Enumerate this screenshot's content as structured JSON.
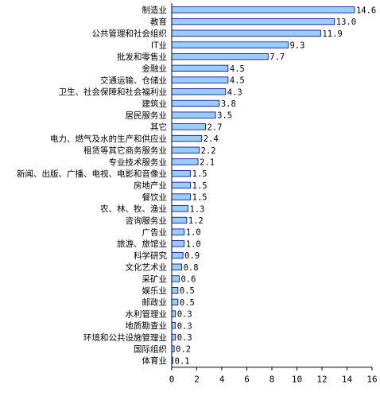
{
  "chart_data": {
    "type": "bar",
    "orientation": "horizontal",
    "categories": [
      "制造业",
      "教育",
      "公共管理和社会组织",
      "IT业",
      "批发和零售业",
      "金融业",
      "交通运输、仓储业",
      "卫生、社会保障和社会福利业",
      "建筑业",
      "居民服务业",
      "其它",
      "电力、燃气及水的生产和供应业",
      "租赁等其它商务服务业",
      "专业技术服务业",
      "新闻、出版、广播、电视、电影和音像业",
      "房地产业",
      "餐饮业",
      "农、林、牧、渔业",
      "咨询服务业",
      "广告业",
      "旅游、旅馆业",
      "科学研究",
      "文化艺术业",
      "采矿业",
      "娱乐业",
      "邮政业",
      "水利管理业",
      "地质勘查业",
      "环境和公共设施管理业",
      "国际组织",
      "体育业"
    ],
    "values": [
      14.6,
      13.0,
      11.9,
      9.3,
      7.7,
      4.5,
      4.5,
      4.3,
      3.8,
      3.5,
      2.7,
      2.4,
      2.2,
      2.1,
      1.5,
      1.5,
      1.5,
      1.3,
      1.2,
      1.0,
      1.0,
      0.9,
      0.8,
      0.6,
      0.5,
      0.5,
      0.3,
      0.3,
      0.3,
      0.2,
      0.1
    ],
    "value_labels": [
      "14.6",
      "13.0",
      "11.9",
      "9.3",
      "7.7",
      "4.5",
      "4.5",
      "4.3",
      "3.8",
      "3.5",
      "2.7",
      "2.4",
      "2.2",
      "2.1",
      "1.5",
      "1.5",
      "1.5",
      "1.3",
      "1.2",
      "1.0",
      "1.0",
      "0.9",
      "0.8",
      "0.6",
      "0.5",
      "0.5",
      "0.3",
      "0.3",
      "0.3",
      "0.2",
      "0.1"
    ],
    "x_ticks": [
      0,
      2,
      4,
      6,
      8,
      10,
      12,
      14,
      16
    ],
    "xlim": [
      0,
      16
    ],
    "title": "",
    "xlabel": "",
    "ylabel": "",
    "grid": false,
    "legend": "none",
    "bar_color": "#99ccff",
    "bar_edge_color": "#000080",
    "axis_color": "#000000"
  }
}
